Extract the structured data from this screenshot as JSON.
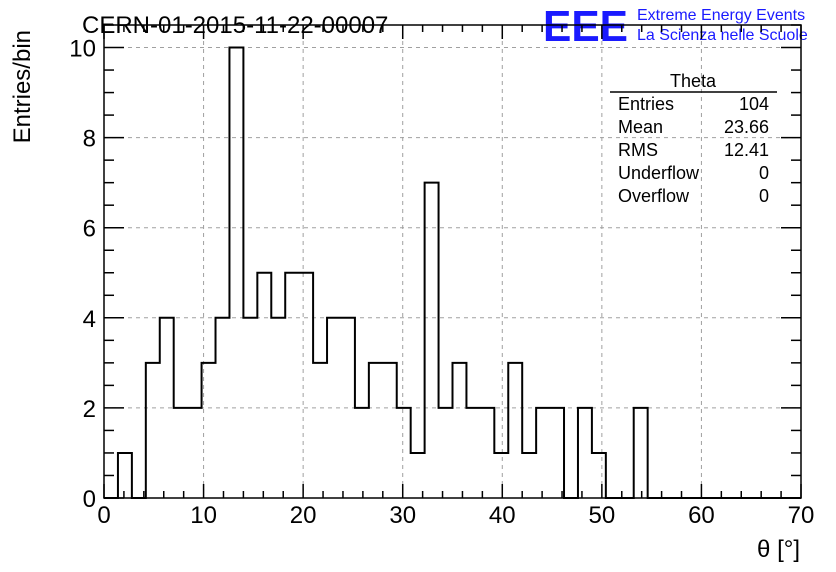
{
  "chart_data": {
    "type": "histogram",
    "title": "CERN-01-2015-11-22-00007",
    "xlabel": "θ [°]",
    "ylabel": "Entries/bin",
    "xlim": [
      0,
      70
    ],
    "ylim": [
      0,
      10.5
    ],
    "x_ticks": [
      "0",
      "10",
      "20",
      "30",
      "40",
      "50",
      "60",
      "70"
    ],
    "y_ticks": [
      "0",
      "2",
      "4",
      "6",
      "8",
      "10"
    ],
    "grid": true,
    "bin_width": 1.4,
    "bin_start": 0,
    "values": [
      0,
      1,
      0,
      3,
      4,
      2,
      2,
      3,
      4,
      10,
      4,
      5,
      4,
      5,
      5,
      3,
      4,
      4,
      2,
      3,
      3,
      2,
      1,
      7,
      2,
      3,
      2,
      2,
      1,
      3,
      1,
      2,
      2,
      0,
      2,
      1,
      0,
      0,
      2,
      0,
      0,
      0,
      0,
      0,
      0,
      0,
      0,
      0,
      0,
      0
    ],
    "legend": {
      "title": "Theta",
      "rows": [
        {
          "label": "Entries",
          "value": "104"
        },
        {
          "label": "Mean",
          "value": "23.66"
        },
        {
          "label": "RMS",
          "value": "12.41"
        },
        {
          "label": "Underflow",
          "value": "0"
        },
        {
          "label": "Overflow",
          "value": "0"
        }
      ]
    }
  },
  "logo": {
    "mark": "EEE",
    "line1": "Extreme Energy Events",
    "line2": "La Scienza nelle Scuole",
    "color": "#1a1aff"
  }
}
